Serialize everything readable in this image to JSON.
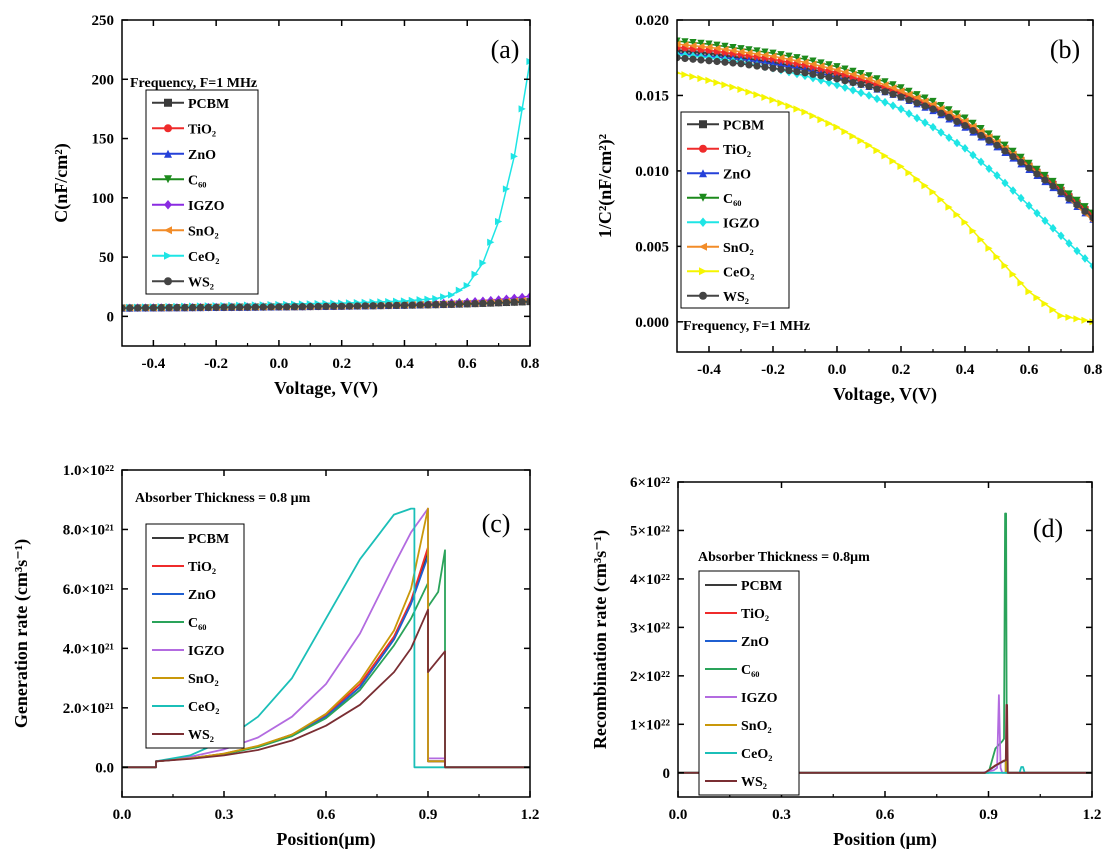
{
  "chart_data": [
    {
      "panel": "(a)",
      "type": "line",
      "xlabel": "Voltage, V(V)",
      "ylabel": "C(nF/cm²)",
      "xlim": [
        -0.5,
        0.8
      ],
      "ylim": [
        -25,
        250
      ],
      "xticks": [
        -0.4,
        -0.2,
        0.0,
        0.2,
        0.4,
        0.6,
        0.8
      ],
      "xtick_labels": [
        "-0.4",
        "-0.2",
        "0.0",
        "0.2",
        "0.4",
        "0.6",
        "0.8"
      ],
      "yticks": [
        0,
        50,
        100,
        150,
        200,
        250
      ],
      "ytick_labels": [
        "0",
        "50",
        "100",
        "150",
        "200",
        "250"
      ],
      "annotation": "Frequency, F=1 MHz",
      "legend_position": "upper-left",
      "x": [
        -0.5,
        -0.4,
        -0.3,
        -0.2,
        -0.1,
        0.0,
        0.1,
        0.2,
        0.3,
        0.4,
        0.5,
        0.55,
        0.6,
        0.65,
        0.7,
        0.75,
        0.8
      ],
      "series": [
        {
          "name": "PCBM",
          "color": "#3a3a3a",
          "marker": "square",
          "values": [
            7,
            7.2,
            7.4,
            7.6,
            7.8,
            8,
            8.3,
            8.6,
            9,
            9.4,
            9.9,
            10.2,
            10.6,
            11,
            11.5,
            12,
            12.5
          ]
        },
        {
          "name": "TiO₂",
          "color": "#ef2b2b",
          "marker": "circle",
          "values": [
            7,
            7.2,
            7.4,
            7.6,
            7.8,
            8,
            8.3,
            8.6,
            9,
            9.4,
            10,
            10.3,
            10.8,
            11.3,
            11.9,
            12.5,
            13.2
          ]
        },
        {
          "name": "ZnO",
          "color": "#2541d9",
          "marker": "triangle-up",
          "values": [
            7,
            7.2,
            7.4,
            7.6,
            7.8,
            8.1,
            8.4,
            8.7,
            9.1,
            9.6,
            10.2,
            10.6,
            11.1,
            11.7,
            12.4,
            13.2,
            14
          ]
        },
        {
          "name": "C₆₀",
          "color": "#1c8a1c",
          "marker": "triangle-down",
          "values": [
            6.8,
            7,
            7.2,
            7.4,
            7.6,
            7.8,
            8.1,
            8.4,
            8.7,
            9.1,
            9.6,
            9.9,
            10.3,
            10.7,
            11.2,
            11.7,
            12.2
          ]
        },
        {
          "name": "IGZO",
          "color": "#8a2be2",
          "marker": "diamond",
          "values": [
            7.2,
            7.4,
            7.6,
            7.8,
            8,
            8.3,
            8.6,
            9,
            9.5,
            10.1,
            10.9,
            11.5,
            12.2,
            13.1,
            14.2,
            15.5,
            17
          ]
        },
        {
          "name": "SnO₂",
          "color": "#f28c28",
          "marker": "triangle-left",
          "values": [
            7,
            7.2,
            7.4,
            7.6,
            7.8,
            8,
            8.3,
            8.6,
            9,
            9.5,
            10.1,
            10.5,
            11,
            11.6,
            12.3,
            13,
            13.8
          ]
        },
        {
          "name": "CeO₂",
          "color": "#1ee5e5",
          "marker": "triangle-right",
          "values": [
            7.5,
            8,
            8.5,
            9,
            9.5,
            10,
            10.6,
            11.2,
            12,
            13,
            15,
            18,
            26,
            45,
            80,
            135,
            215
          ]
        },
        {
          "name": "WS₂",
          "color": "#444444",
          "marker": "circle",
          "values": [
            7,
            7.2,
            7.4,
            7.6,
            7.8,
            8,
            8.3,
            8.6,
            9,
            9.4,
            9.9,
            10.2,
            10.6,
            11,
            11.5,
            12,
            12.6
          ]
        }
      ]
    },
    {
      "panel": "(b)",
      "type": "line",
      "xlabel": "Voltage, V(V)",
      "ylabel": "1/C²(nF/cm²)²",
      "xlim": [
        -0.5,
        0.8
      ],
      "ylim": [
        -0.002,
        0.02
      ],
      "xticks": [
        -0.4,
        -0.2,
        0.0,
        0.2,
        0.4,
        0.6,
        0.8
      ],
      "xtick_labels": [
        "-0.4",
        "-0.2",
        "0.0",
        "0.2",
        "0.4",
        "0.6",
        "0.8"
      ],
      "yticks": [
        0.0,
        0.005,
        0.01,
        0.015,
        0.02
      ],
      "ytick_labels": [
        "0.000",
        "0.005",
        "0.010",
        "0.015",
        "0.020"
      ],
      "annotation": "Frequency, F=1 MHz",
      "legend_position": "middle-left",
      "x": [
        -0.5,
        -0.4,
        -0.3,
        -0.2,
        -0.1,
        0.0,
        0.1,
        0.2,
        0.3,
        0.4,
        0.5,
        0.6,
        0.7,
        0.8
      ],
      "series": [
        {
          "name": "PCBM",
          "color": "#3a3a3a",
          "marker": "square",
          "values": [
            0.018,
            0.0178,
            0.0175,
            0.0172,
            0.0168,
            0.0164,
            0.0158,
            0.0151,
            0.0142,
            0.0131,
            0.0118,
            0.0103,
            0.0087,
            0.007
          ]
        },
        {
          "name": "TiO₂",
          "color": "#ef2b2b",
          "marker": "circle",
          "values": [
            0.0182,
            0.018,
            0.0177,
            0.0174,
            0.017,
            0.0165,
            0.0159,
            0.0152,
            0.0143,
            0.0132,
            0.0119,
            0.0104,
            0.0088,
            0.0071
          ]
        },
        {
          "name": "ZnO",
          "color": "#2541d9",
          "marker": "triangle-up",
          "values": [
            0.0178,
            0.0176,
            0.0174,
            0.0171,
            0.0167,
            0.0162,
            0.0156,
            0.0149,
            0.014,
            0.0129,
            0.0116,
            0.0101,
            0.0085,
            0.0068
          ]
        },
        {
          "name": "C₆₀",
          "color": "#1c8a1c",
          "marker": "triangle-down",
          "values": [
            0.0186,
            0.0184,
            0.0181,
            0.0178,
            0.0174,
            0.0169,
            0.0163,
            0.0155,
            0.0146,
            0.0135,
            0.0121,
            0.0105,
            0.0089,
            0.0072
          ]
        },
        {
          "name": "IGZO",
          "color": "#1ee5e5",
          "marker": "diamond",
          "values": [
            0.0177,
            0.0175,
            0.0172,
            0.0168,
            0.0163,
            0.0157,
            0.015,
            0.0141,
            0.0129,
            0.0115,
            0.0097,
            0.0077,
            0.0057,
            0.0037
          ]
        },
        {
          "name": "SnO₂",
          "color": "#f28c28",
          "marker": "triangle-left",
          "values": [
            0.0184,
            0.0182,
            0.0179,
            0.0176,
            0.0172,
            0.0167,
            0.0161,
            0.0153,
            0.0144,
            0.0133,
            0.0119,
            0.0103,
            0.0086,
            0.0067
          ]
        },
        {
          "name": "CeO₂",
          "color": "#f5f500",
          "marker": "triangle-right",
          "values": [
            0.0165,
            0.016,
            0.0154,
            0.0147,
            0.0139,
            0.0129,
            0.0117,
            0.0103,
            0.0086,
            0.0066,
            0.0043,
            0.002,
            0.0004,
            0.0
          ]
        },
        {
          "name": "WS₂",
          "color": "#444444",
          "marker": "circle",
          "values": [
            0.0175,
            0.0173,
            0.0171,
            0.0168,
            0.0165,
            0.0161,
            0.0156,
            0.0149,
            0.0141,
            0.013,
            0.0117,
            0.0102,
            0.0086,
            0.0069
          ]
        }
      ]
    },
    {
      "panel": "(c)",
      "type": "line",
      "xlabel": "Position(μm)",
      "ylabel": "Generation rate (cm³s⁻¹)",
      "xlim": [
        0,
        1.2
      ],
      "ylim": [
        -1e+21,
        1e+22
      ],
      "xticks": [
        0.0,
        0.3,
        0.6,
        0.9,
        1.2
      ],
      "xtick_labels": [
        "0.0",
        "0.3",
        "0.6",
        "0.9",
        "1.2"
      ],
      "yticks": [
        0,
        2e+21,
        4e+21,
        6e+21,
        8e+21,
        1e+22
      ],
      "ytick_labels": [
        "0.0",
        "2.0×10²¹",
        "4.0×10²¹",
        "6.0×10²¹",
        "8.0×10²¹",
        "1.0×10²²"
      ],
      "annotation": "Absorber Thickness = 0.8 μm",
      "legend_position": "left",
      "series": [
        {
          "name": "PCBM",
          "color": "#3a3a3a",
          "x": [
            0,
            0.1,
            0.1,
            0.2,
            0.3,
            0.4,
            0.5,
            0.6,
            0.7,
            0.8,
            0.85,
            0.9,
            0.9,
            0.95,
            0.95,
            1.2
          ],
          "values": [
            0,
            0,
            2e+20,
            3e+20,
            4.5e+20,
            7e+20,
            1.1e+21,
            1.7e+21,
            2.7e+21,
            4.3e+21,
            5.5e+21,
            7.2e+21,
            2e+20,
            2e+20,
            0,
            0
          ]
        },
        {
          "name": "TiO₂",
          "color": "#ef2b2b",
          "x": [
            0,
            0.1,
            0.1,
            0.2,
            0.3,
            0.4,
            0.5,
            0.6,
            0.7,
            0.8,
            0.85,
            0.9,
            0.9,
            0.95,
            0.95,
            1.2
          ],
          "values": [
            0,
            0,
            2e+20,
            3e+20,
            4.6e+20,
            7.1e+20,
            1.1e+21,
            1.75e+21,
            2.8e+21,
            4.4e+21,
            5.6e+21,
            7.4e+21,
            2e+20,
            2e+20,
            0,
            0
          ]
        },
        {
          "name": "ZnO",
          "color": "#1f5fd1",
          "x": [
            0,
            0.1,
            0.1,
            0.2,
            0.3,
            0.4,
            0.5,
            0.6,
            0.7,
            0.8,
            0.85,
            0.9,
            0.9,
            0.95,
            0.95,
            1.2
          ],
          "values": [
            0,
            0,
            2e+20,
            3e+20,
            4.5e+20,
            7e+20,
            1.05e+21,
            1.7e+21,
            2.7e+21,
            4.3e+21,
            5.5e+21,
            7.1e+21,
            2e+20,
            2e+20,
            0,
            0
          ]
        },
        {
          "name": "C₆₀",
          "color": "#2aa35a",
          "x": [
            0,
            0.1,
            0.1,
            0.2,
            0.3,
            0.4,
            0.5,
            0.6,
            0.7,
            0.8,
            0.85,
            0.9,
            0.9,
            0.93,
            0.95,
            0.95,
            1.2
          ],
          "values": [
            0,
            0,
            2e+20,
            3e+20,
            4.4e+20,
            6.8e+20,
            1.05e+21,
            1.65e+21,
            2.6e+21,
            4.1e+21,
            5e+21,
            6.2e+21,
            5.4e+21,
            5.9e+21,
            7.3e+21,
            0,
            0
          ]
        },
        {
          "name": "IGZO",
          "color": "#b36be0",
          "x": [
            0,
            0.1,
            0.1,
            0.2,
            0.3,
            0.4,
            0.5,
            0.6,
            0.7,
            0.8,
            0.85,
            0.9,
            0.9,
            0.95,
            0.95,
            1.2
          ],
          "values": [
            0,
            0,
            2e+20,
            3.5e+20,
            6e+20,
            1e+21,
            1.7e+21,
            2.8e+21,
            4.5e+21,
            6.8e+21,
            7.9e+21,
            8.7e+21,
            3e+20,
            3e+20,
            0,
            0
          ]
        },
        {
          "name": "SnO₂",
          "color": "#c9980a",
          "x": [
            0,
            0.1,
            0.1,
            0.2,
            0.3,
            0.4,
            0.5,
            0.6,
            0.7,
            0.8,
            0.85,
            0.9,
            0.9,
            0.95,
            0.95,
            1.2
          ],
          "values": [
            0,
            0,
            2e+20,
            3e+20,
            4.6e+20,
            7.2e+20,
            1.1e+21,
            1.8e+21,
            2.9e+21,
            4.6e+21,
            6e+21,
            8.7e+21,
            2e+20,
            2e+20,
            0,
            0
          ]
        },
        {
          "name": "CeO₂",
          "color": "#1bbfb8",
          "x": [
            0,
            0.1,
            0.1,
            0.2,
            0.3,
            0.4,
            0.5,
            0.6,
            0.7,
            0.8,
            0.85,
            0.86,
            0.86,
            1.2
          ],
          "values": [
            0,
            0,
            2e+20,
            4e+20,
            9e+20,
            1.7e+21,
            3e+21,
            5e+21,
            7e+21,
            8.5e+21,
            8.7e+21,
            8.7e+21,
            0,
            0
          ]
        },
        {
          "name": "WS₂",
          "color": "#7a2e33",
          "x": [
            0,
            0.1,
            0.1,
            0.2,
            0.3,
            0.4,
            0.5,
            0.6,
            0.7,
            0.8,
            0.85,
            0.9,
            0.9,
            0.95,
            0.95,
            1.2
          ],
          "values": [
            0,
            0,
            2e+20,
            2.8e+20,
            4e+20,
            5.8e+20,
            9e+20,
            1.4e+21,
            2.1e+21,
            3.2e+21,
            4e+21,
            5.3e+21,
            3.2e+21,
            3.9e+21,
            0,
            0
          ]
        }
      ]
    },
    {
      "panel": "(d)",
      "type": "line",
      "xlabel": "Position (μm)",
      "ylabel": "Recombination rate (cm³s⁻¹)",
      "xlim": [
        0,
        1.2
      ],
      "ylim": [
        -5e+21,
        6e+22
      ],
      "xticks": [
        0.0,
        0.3,
        0.6,
        0.9,
        1.2
      ],
      "xtick_labels": [
        "0.0",
        "0.3",
        "0.6",
        "0.9",
        "1.2"
      ],
      "yticks": [
        0,
        1e+22,
        2e+22,
        3e+22,
        4e+22,
        5e+22,
        6e+22
      ],
      "ytick_labels": [
        "0",
        "1×10²²",
        "2×10²²",
        "3×10²²",
        "4×10²²",
        "5×10²²",
        "6×10²²"
      ],
      "annotation": "Absorber Thickness = 0.8μm",
      "legend_position": "left",
      "series": [
        {
          "name": "PCBM",
          "color": "#3a3a3a",
          "x": [
            0,
            0.89,
            0.92,
            0.945,
            0.95,
            0.95,
            1.2
          ],
          "values": [
            0,
            0,
            1.5e+21,
            2.5e+21,
            2.6e+21,
            0,
            0
          ]
        },
        {
          "name": "TiO₂",
          "color": "#ef2b2b",
          "x": [
            0,
            0.89,
            0.92,
            0.945,
            0.95,
            0.95,
            1.2
          ],
          "values": [
            0,
            0,
            1.5e+21,
            2.5e+21,
            2.6e+21,
            0,
            0
          ]
        },
        {
          "name": "ZnO",
          "color": "#1f5fd1",
          "x": [
            0,
            0.89,
            0.92,
            0.945,
            0.95,
            0.95,
            1.2
          ],
          "values": [
            0,
            0,
            1.4e+21,
            2.4e+21,
            2.5e+21,
            0,
            0
          ]
        },
        {
          "name": "C₆₀",
          "color": "#2aa35a",
          "x": [
            0,
            0.9,
            0.92,
            0.94,
            0.945,
            0.948,
            0.951,
            0.953,
            0.955,
            1.2
          ],
          "values": [
            0,
            0,
            5e+21,
            6.5e+21,
            7e+21,
            5.35e+22,
            5.35e+22,
            0,
            0,
            0
          ]
        },
        {
          "name": "IGZO",
          "color": "#b36be0",
          "x": [
            0,
            0.88,
            0.915,
            0.925,
            0.93,
            0.935,
            0.94,
            1.2
          ],
          "values": [
            0,
            0,
            5e+20,
            1e+21,
            1.6e+22,
            1e+21,
            0,
            0
          ]
        },
        {
          "name": "SnO₂",
          "color": "#c9980a",
          "x": [
            0,
            0.89,
            0.92,
            0.945,
            0.95,
            0.95,
            1.2
          ],
          "values": [
            0,
            0,
            1.5e+21,
            2.5e+21,
            2.6e+21,
            0,
            0
          ]
        },
        {
          "name": "CeO₂",
          "color": "#1bbfb8",
          "x": [
            0,
            0.99,
            0.995,
            1.0,
            1.005,
            1.2
          ],
          "values": [
            0,
            0,
            1.2e+21,
            1.2e+21,
            0,
            0
          ]
        },
        {
          "name": "WS₂",
          "color": "#7a2e33",
          "x": [
            0,
            0.89,
            0.92,
            0.945,
            0.95,
            0.952,
            0.954,
            0.956,
            1.2
          ],
          "values": [
            0,
            0,
            1.5e+21,
            2.5e+21,
            2.6e+21,
            1.4e+22,
            1.4e+22,
            0,
            0
          ]
        }
      ]
    }
  ]
}
